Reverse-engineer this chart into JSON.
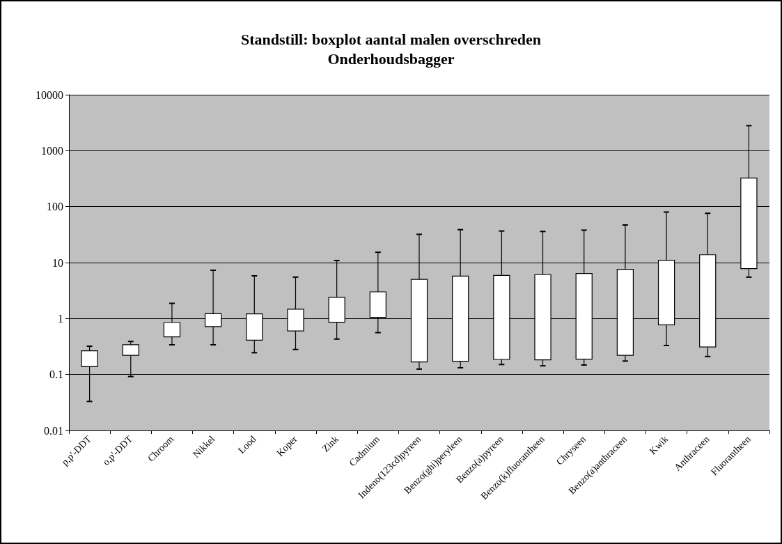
{
  "chart_data": {
    "type": "bar",
    "title": "Standstill: boxplot aantal malen overschreden",
    "subtitle": "Onderhoudsbagger",
    "categories": [
      "p,p'-DDT",
      "o,p'-DDT",
      "Chroom",
      "Nikkel",
      "Lood",
      "Koper",
      "Zink",
      "Cadmium",
      "Indeno(123cd)pyreen",
      "Benzo(ghi)peryleen",
      "Benzo(a)pyreen",
      "Benzo(k)fluorantheen",
      "Chryseen",
      "Benzo(a)anthraceen",
      "Kwik",
      "Anthraceen",
      "Fluorantheen"
    ],
    "base": [
      0.138,
      0.22,
      0.47,
      0.72,
      0.41,
      0.6,
      0.86,
      1.05,
      0.168,
      0.173,
      0.186,
      0.183,
      0.188,
      0.22,
      0.77,
      0.31,
      7.8
    ],
    "values": [
      0.127,
      0.12,
      0.38,
      0.5,
      0.8,
      0.87,
      1.54,
      1.95,
      4.832,
      5.577,
      5.714,
      5.917,
      6.212,
      7.38,
      10.23,
      13.49,
      317.2
    ],
    "errors": [
      [
        0.033,
        0.32
      ],
      [
        0.092,
        0.39
      ],
      [
        0.34,
        1.87
      ],
      [
        0.34,
        7.3
      ],
      [
        0.245,
        5.8
      ],
      [
        0.28,
        5.5
      ],
      [
        0.43,
        10.9
      ],
      [
        0.56,
        15.3
      ],
      [
        0.125,
        32
      ],
      [
        0.132,
        38.8
      ],
      [
        0.151,
        36.7
      ],
      [
        0.143,
        36
      ],
      [
        0.148,
        38
      ],
      [
        0.174,
        47
      ],
      [
        0.33,
        80
      ],
      [
        0.21,
        76
      ],
      [
        5.5,
        2800
      ]
    ],
    "color": "#ffffff",
    "log": "y",
    "ylim": [
      0.01,
      10000
    ],
    "yticks": [
      0.01,
      0.1,
      1,
      10,
      100,
      1000,
      10000
    ],
    "grid": "y"
  }
}
